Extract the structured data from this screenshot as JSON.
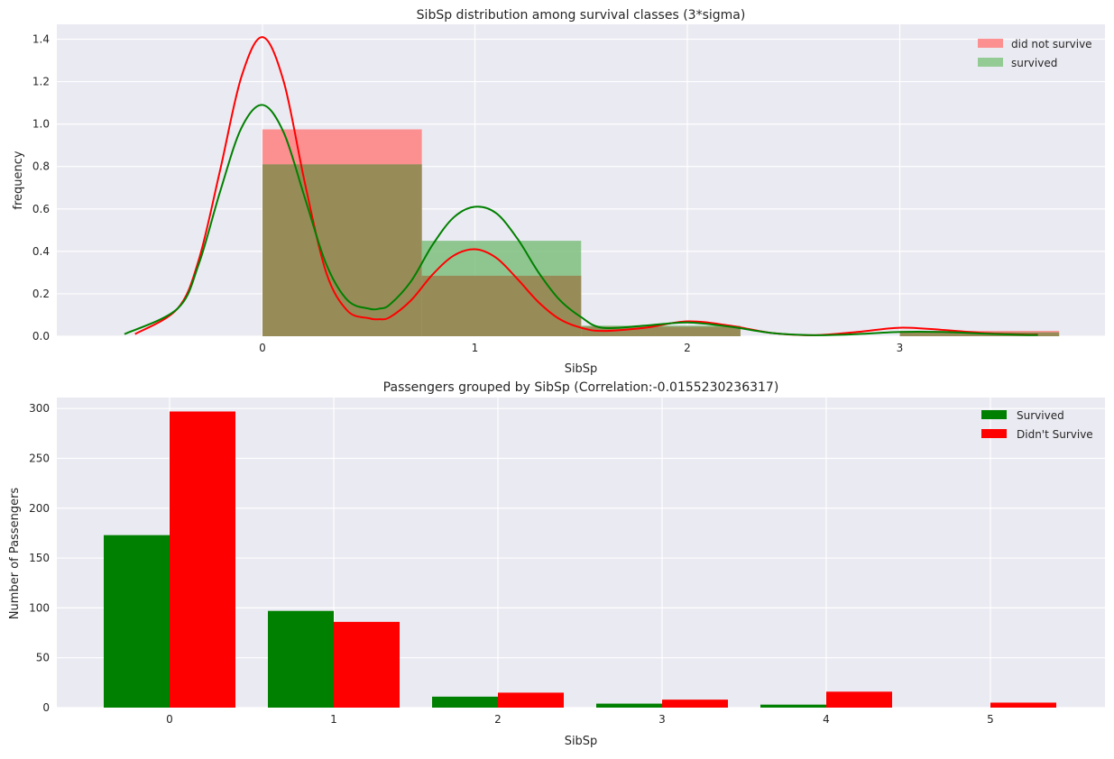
{
  "chart_data": [
    {
      "type": "bar",
      "title": "SibSp distribution among survival classes (3*sigma)",
      "xlabel": "SibSp",
      "ylabel": "frequency",
      "xlim": [
        -0.65,
        3.9
      ],
      "ylim": [
        0,
        1.47
      ],
      "xticks": [
        "0",
        "1",
        "2",
        "3"
      ],
      "yticks": [
        "0.0",
        "0.2",
        "0.4",
        "0.6",
        "0.8",
        "1.0",
        "1.2",
        "1.4"
      ],
      "grid": true,
      "legend_position": "top-right",
      "bin_edges": [
        0,
        0.75,
        1.5,
        2.25,
        3.0,
        3.75
      ],
      "series": [
        {
          "name": "did not survive",
          "color": "#ff7f7f",
          "values": [
            0.975,
            0.285,
            0.045,
            0.0,
            0.025
          ]
        },
        {
          "name": "survived",
          "color": "#8fc98f",
          "values": [
            0.81,
            0.45,
            0.05,
            0.0,
            0.018
          ]
        }
      ],
      "kde": [
        {
          "color": "#ff0000",
          "x": [
            -0.6,
            -0.4,
            -0.3,
            -0.2,
            -0.1,
            0.0,
            0.1,
            0.2,
            0.3,
            0.4,
            0.5,
            0.55,
            0.6,
            0.7,
            0.8,
            0.9,
            1.0,
            1.1,
            1.2,
            1.3,
            1.4,
            1.5,
            1.6,
            1.8,
            2.0,
            2.2,
            2.4,
            2.6,
            2.8,
            3.0,
            3.2,
            3.4,
            3.6,
            3.65
          ],
          "y": [
            0.01,
            0.13,
            0.36,
            0.78,
            1.22,
            1.41,
            1.2,
            0.72,
            0.3,
            0.12,
            0.085,
            0.08,
            0.09,
            0.17,
            0.29,
            0.38,
            0.41,
            0.37,
            0.27,
            0.16,
            0.08,
            0.04,
            0.025,
            0.04,
            0.07,
            0.05,
            0.015,
            0.005,
            0.02,
            0.04,
            0.03,
            0.015,
            0.008,
            0.008
          ]
        },
        {
          "color": "#008000",
          "x": [
            -0.65,
            -0.4,
            -0.3,
            -0.2,
            -0.1,
            0.0,
            0.1,
            0.2,
            0.3,
            0.4,
            0.5,
            0.55,
            0.6,
            0.7,
            0.8,
            0.9,
            1.0,
            1.1,
            1.2,
            1.3,
            1.4,
            1.5,
            1.6,
            1.8,
            2.0,
            2.2,
            2.4,
            2.6,
            2.8,
            3.0,
            3.2,
            3.4,
            3.6,
            3.65
          ],
          "y": [
            0.01,
            0.13,
            0.34,
            0.68,
            0.98,
            1.09,
            0.96,
            0.65,
            0.34,
            0.17,
            0.13,
            0.13,
            0.15,
            0.26,
            0.43,
            0.56,
            0.61,
            0.58,
            0.46,
            0.3,
            0.17,
            0.09,
            0.04,
            0.05,
            0.065,
            0.045,
            0.015,
            0.005,
            0.01,
            0.02,
            0.02,
            0.012,
            0.006,
            0.006
          ]
        }
      ]
    },
    {
      "type": "bar",
      "title": "Passengers grouped by SibSp (Correlation:-0.0155230236317)",
      "xlabel": "SibSp",
      "ylabel": "Number of Passengers",
      "ylim": [
        0,
        311
      ],
      "categories": [
        "0",
        "1",
        "2",
        "3",
        "4",
        "5"
      ],
      "yticks": [
        "0",
        "50",
        "100",
        "150",
        "200",
        "250",
        "300"
      ],
      "grid": true,
      "legend_position": "top-right",
      "series": [
        {
          "name": "Survived",
          "color": "#008000",
          "values": [
            173,
            97,
            11,
            4,
            3,
            0
          ]
        },
        {
          "name": "Didn't Survive",
          "color": "#ff0000",
          "values": [
            297,
            86,
            15,
            8,
            16,
            5
          ]
        }
      ]
    }
  ]
}
